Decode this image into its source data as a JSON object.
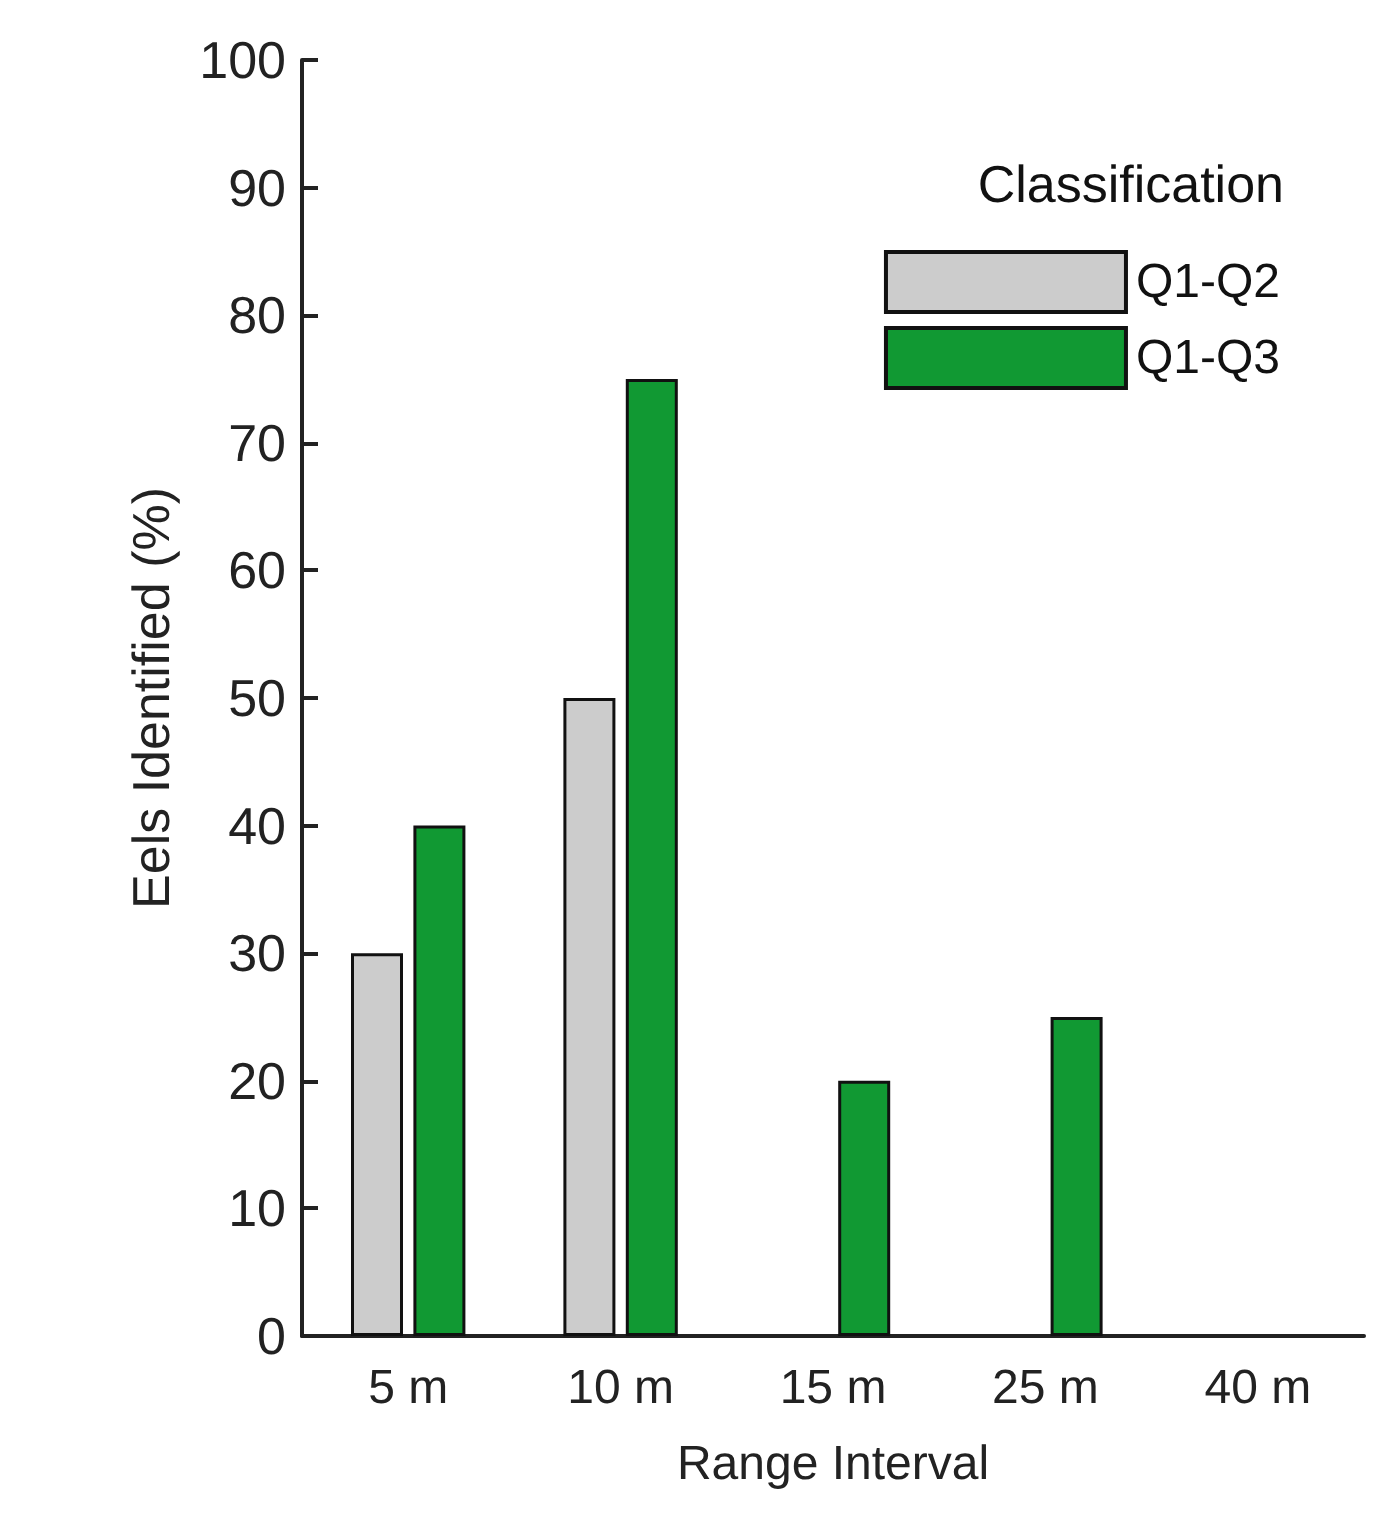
{
  "chart_data": {
    "type": "bar",
    "xlabel": "Range Interval",
    "ylabel": "Eels Identified (%)",
    "legend_title": "Classification",
    "categories": [
      "5 m",
      "10 m",
      "15 m",
      "25 m",
      "40 m"
    ],
    "series": [
      {
        "name": "Q1-Q2",
        "color": "#cccccc",
        "values": [
          30,
          50,
          0,
          0,
          0
        ]
      },
      {
        "name": "Q1-Q3",
        "color": "#119933",
        "values": [
          40,
          75,
          20,
          25,
          0
        ]
      }
    ],
    "ylim": [
      0,
      100
    ],
    "yticks": [
      0,
      10,
      20,
      30,
      40,
      50,
      60,
      70,
      80,
      90,
      100
    ],
    "grid": false,
    "legend": "top right"
  }
}
